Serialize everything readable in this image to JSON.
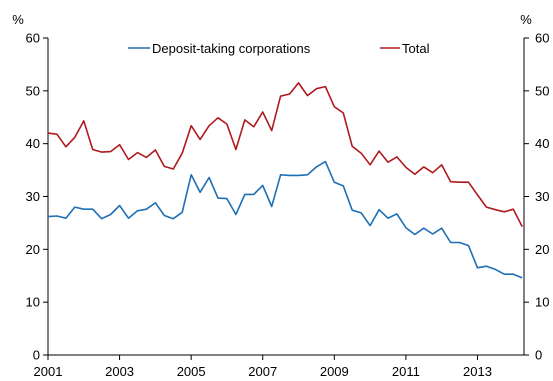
{
  "chart_data": {
    "type": "line",
    "title": "",
    "xlabel": "",
    "ylabel_left": "%",
    "ylabel_right": "%",
    "x_range": [
      2001,
      2014.3
    ],
    "ylim": [
      0,
      60
    ],
    "y_ticks": [
      0,
      10,
      20,
      30,
      40,
      50,
      60
    ],
    "x_ticks": [
      2001,
      2003,
      2005,
      2007,
      2009,
      2011,
      2013
    ],
    "x_tick_labels": [
      "2001",
      "2003",
      "2005",
      "2007",
      "2009",
      "2011",
      "2013"
    ],
    "grid": false,
    "legend_position": "top",
    "series": [
      {
        "name": "Deposit-taking corporations",
        "color": "#1f6fb5",
        "x": [
          2001.0,
          2001.25,
          2001.5,
          2001.75,
          2002.0,
          2002.25,
          2002.5,
          2002.75,
          2003.0,
          2003.25,
          2003.5,
          2003.75,
          2004.0,
          2004.25,
          2004.5,
          2004.75,
          2005.0,
          2005.25,
          2005.5,
          2005.75,
          2006.0,
          2006.25,
          2006.5,
          2006.75,
          2007.0,
          2007.25,
          2007.5,
          2007.75,
          2008.0,
          2008.25,
          2008.5,
          2008.75,
          2009.0,
          2009.25,
          2009.5,
          2009.75,
          2010.0,
          2010.25,
          2010.5,
          2010.75,
          2011.0,
          2011.25,
          2011.5,
          2011.75,
          2012.0,
          2012.25,
          2012.5,
          2012.75,
          2013.0,
          2013.25,
          2013.5,
          2013.75,
          2014.0,
          2014.25
        ],
        "values": [
          26.2,
          26.3,
          25.9,
          28.0,
          27.6,
          27.6,
          25.8,
          26.6,
          28.3,
          25.9,
          27.3,
          27.6,
          28.8,
          26.4,
          25.8,
          27.0,
          34.1,
          30.8,
          33.6,
          29.7,
          29.6,
          26.6,
          30.4,
          30.4,
          32.1,
          28.1,
          34.1,
          34.0,
          34.0,
          34.1,
          35.6,
          36.6,
          32.7,
          32.0,
          27.4,
          26.9,
          24.5,
          27.5,
          25.9,
          26.7,
          24.1,
          22.8,
          24.0,
          22.9,
          24.0,
          21.3,
          21.3,
          20.7,
          16.5,
          16.8,
          16.2,
          15.3,
          15.3,
          14.6
        ]
      },
      {
        "name": "Total",
        "color": "#b0191e",
        "x": [
          2001.0,
          2001.25,
          2001.5,
          2001.75,
          2002.0,
          2002.25,
          2002.5,
          2002.75,
          2003.0,
          2003.25,
          2003.5,
          2003.75,
          2004.0,
          2004.25,
          2004.5,
          2004.75,
          2005.0,
          2005.25,
          2005.5,
          2005.75,
          2006.0,
          2006.25,
          2006.5,
          2006.75,
          2007.0,
          2007.25,
          2007.5,
          2007.75,
          2008.0,
          2008.25,
          2008.5,
          2008.75,
          2009.0,
          2009.25,
          2009.5,
          2009.75,
          2010.0,
          2010.25,
          2010.5,
          2010.75,
          2011.0,
          2011.25,
          2011.5,
          2011.75,
          2012.0,
          2012.25,
          2012.5,
          2012.75,
          2013.0,
          2013.25,
          2013.5,
          2013.75,
          2014.0,
          2014.25
        ],
        "values": [
          42.0,
          41.8,
          39.4,
          41.2,
          44.3,
          38.9,
          38.4,
          38.5,
          39.8,
          37.0,
          38.3,
          37.4,
          38.8,
          35.7,
          35.2,
          38.2,
          43.4,
          40.8,
          43.4,
          44.9,
          43.7,
          38.9,
          44.5,
          43.2,
          46.0,
          42.5,
          49.0,
          49.4,
          51.5,
          49.1,
          50.4,
          50.8,
          47.0,
          45.8,
          39.5,
          38.2,
          36.0,
          38.6,
          36.5,
          37.5,
          35.5,
          34.2,
          35.6,
          34.5,
          36.0,
          32.8,
          32.7,
          32.7,
          30.3,
          28.0,
          27.5,
          27.1,
          27.6,
          24.3
        ]
      }
    ]
  }
}
